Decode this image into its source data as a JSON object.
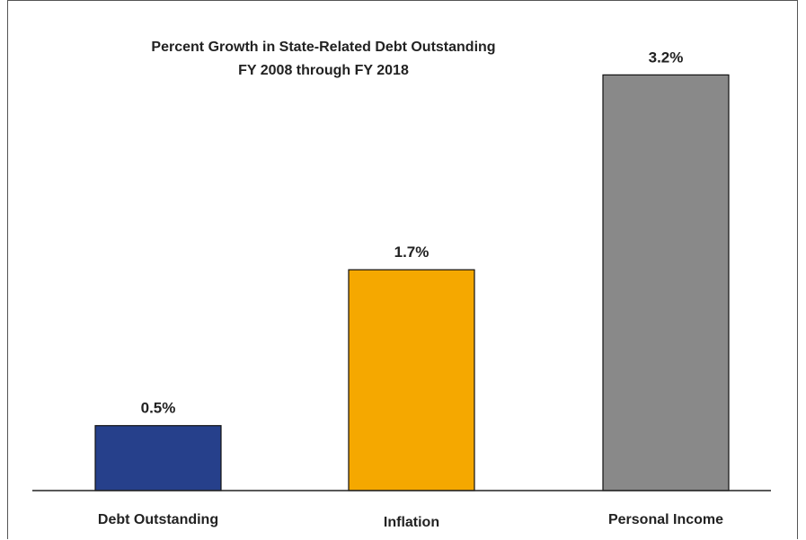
{
  "chart_data": {
    "type": "bar",
    "title": "Percent Growth in State-Related Debt Outstanding",
    "subtitle": "FY 2008 through FY 2018",
    "categories": [
      "Debt Outstanding",
      "Inflation",
      "Personal Income"
    ],
    "values": [
      0.5,
      1.7,
      3.2
    ],
    "value_labels": [
      "0.5%",
      "1.7%",
      "3.2%"
    ],
    "colors": [
      "#26408B",
      "#F5A800",
      "#898989"
    ],
    "xlabel": "",
    "ylabel": "",
    "ylim": [
      0,
      3.5
    ],
    "grid": false,
    "legend": "none"
  }
}
